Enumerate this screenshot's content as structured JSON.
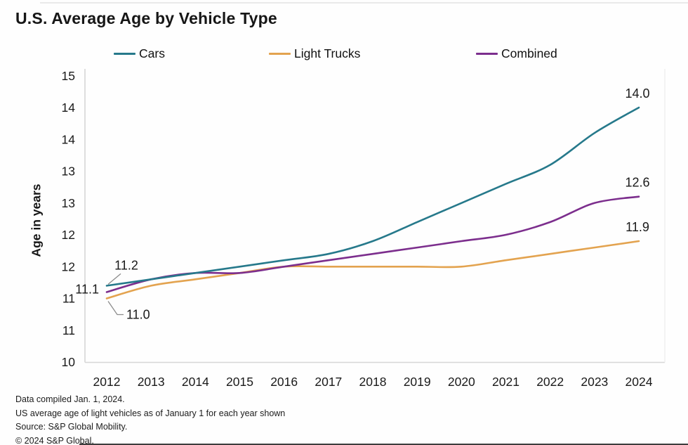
{
  "title": "U.S. Average Age by Vehicle Type",
  "footnotes": {
    "compiled": "Data compiled Jan. 1, 2024.",
    "note": "US average age of light vehicles as of January 1 for each year shown",
    "source": "Source: S&P Global Mobility.",
    "copyright": "© 2024 S&P Global."
  },
  "chart_data": {
    "type": "line",
    "title": "U.S. Average Age by Vehicle Type",
    "xlabel": "",
    "ylabel": "Age in years",
    "x": [
      2012,
      2013,
      2014,
      2015,
      2016,
      2017,
      2018,
      2019,
      2020,
      2021,
      2022,
      2023,
      2024
    ],
    "series": [
      {
        "key": "light_trucks",
        "name": "Light Trucks",
        "color": "#E3A34F",
        "values": [
          11.0,
          11.2,
          11.3,
          11.4,
          11.5,
          11.5,
          11.5,
          11.5,
          11.5,
          11.6,
          11.7,
          11.8,
          11.9
        ]
      },
      {
        "key": "combined",
        "name": "Combined",
        "color": "#7C2E8D",
        "values": [
          11.1,
          11.3,
          11.4,
          11.4,
          11.5,
          11.6,
          11.7,
          11.8,
          11.9,
          12.0,
          12.2,
          12.5,
          12.6
        ]
      },
      {
        "key": "cars",
        "name": "Cars",
        "color": "#26798B",
        "values": [
          11.2,
          11.3,
          11.4,
          11.5,
          11.6,
          11.7,
          11.9,
          12.2,
          12.5,
          12.8,
          13.1,
          13.6,
          14.0
        ]
      }
    ],
    "legend_order": [
      "cars",
      "light_trucks",
      "combined"
    ],
    "legend_position": "top",
    "grid": false,
    "ylim": [
      10,
      14.5
    ],
    "yticks": {
      "values": [
        10,
        10.5,
        11,
        11.5,
        12,
        12.5,
        13,
        13.5,
        14,
        14.5
      ],
      "labels": [
        "10",
        "11",
        "11",
        "12",
        "12",
        "13",
        "13",
        "14",
        "14",
        "15"
      ]
    },
    "annotations": [
      {
        "series": "cars",
        "position": "start",
        "text": "11.2"
      },
      {
        "series": "combined",
        "position": "start",
        "text": "11.1"
      },
      {
        "series": "light_trucks",
        "position": "start",
        "text": "11.0"
      },
      {
        "series": "cars",
        "position": "end",
        "text": "14.0"
      },
      {
        "series": "combined",
        "position": "end",
        "text": "12.6"
      },
      {
        "series": "light_trucks",
        "position": "end",
        "text": "11.9"
      }
    ]
  }
}
